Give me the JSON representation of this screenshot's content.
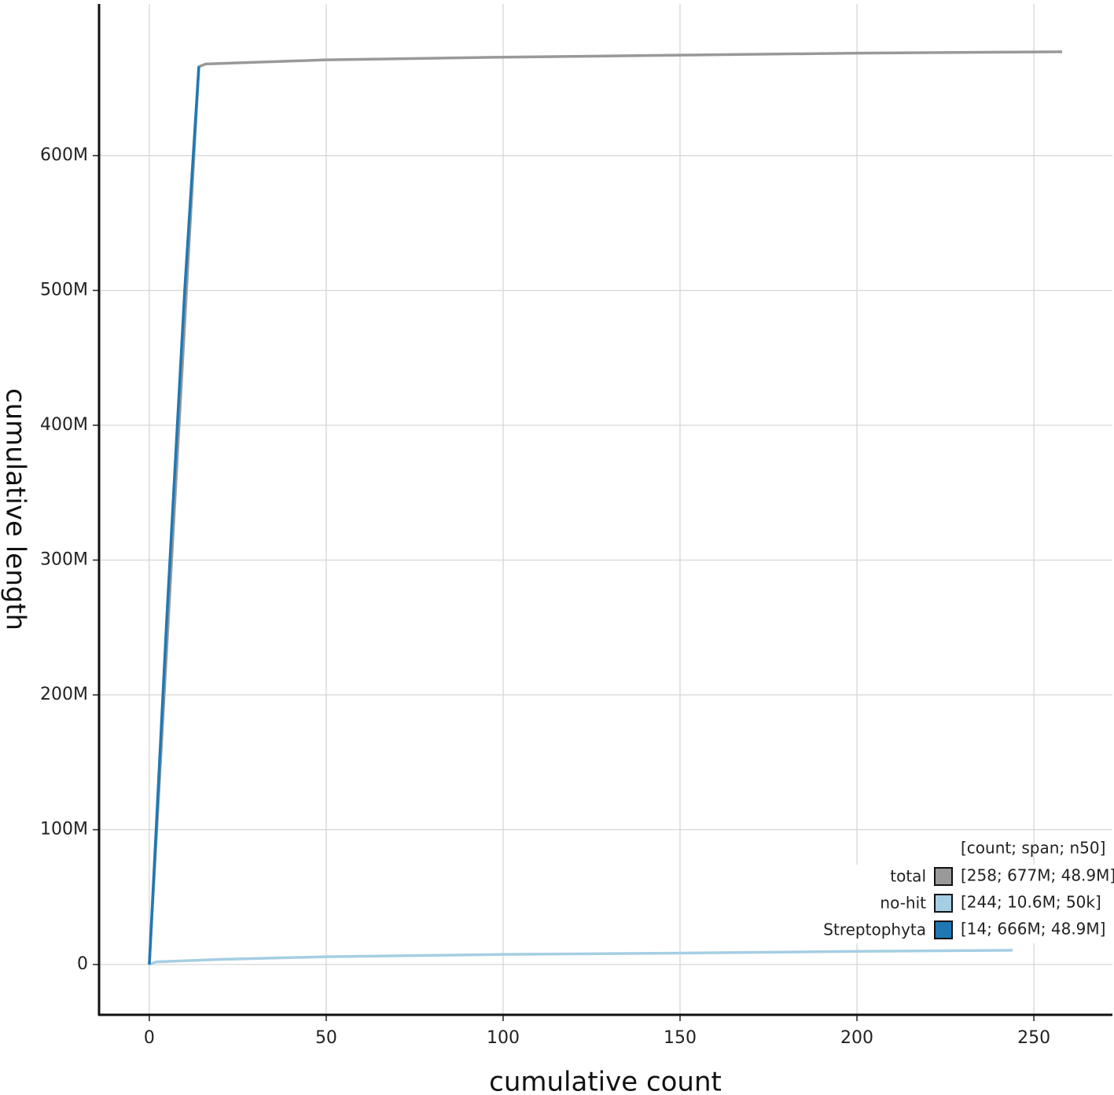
{
  "chart_data": {
    "type": "line",
    "xlabel": "cumulative count",
    "ylabel": "cumulative length",
    "xlim": [
      -14.2,
      272.2
    ],
    "ylim": [
      -37300000,
      712500000
    ],
    "xticks": [
      0,
      50,
      100,
      150,
      200,
      250
    ],
    "yticks": [
      0,
      {
        "value": 100000000,
        "label": "100M"
      },
      {
        "value": 200000000,
        "label": "200M"
      },
      {
        "value": 300000000,
        "label": "300M"
      },
      {
        "value": 400000000,
        "label": "400M"
      },
      {
        "value": 500000000,
        "label": "500M"
      },
      {
        "value": 600000000,
        "label": "600M"
      }
    ],
    "grid": true,
    "legend": {
      "position": "bottom-right",
      "title": "[count; span; n50]"
    },
    "series": [
      {
        "name": "total",
        "color": "#999999",
        "summary": "[258; 677M; 48.9M]",
        "x": [
          0,
          14,
          16,
          50,
          100,
          150,
          200,
          258
        ],
        "values": [
          0,
          666000000,
          668000000,
          671000000,
          673000000,
          674500000,
          676000000,
          677000000
        ]
      },
      {
        "name": "no-hit",
        "color": "#a6cee3",
        "summary": "[244; 10.6M; 50k]",
        "x": [
          0,
          2,
          20,
          50,
          100,
          150,
          200,
          244
        ],
        "values": [
          0,
          2000000,
          3800000,
          5800000,
          7500000,
          8500000,
          9800000,
          10600000
        ]
      },
      {
        "name": "Streptophyta",
        "color": "#1f78b4",
        "summary": "[14; 666M; 48.9M]",
        "x": [
          0,
          5,
          10,
          14
        ],
        "values": [
          0,
          260000000,
          500000000,
          666000000
        ]
      }
    ]
  }
}
